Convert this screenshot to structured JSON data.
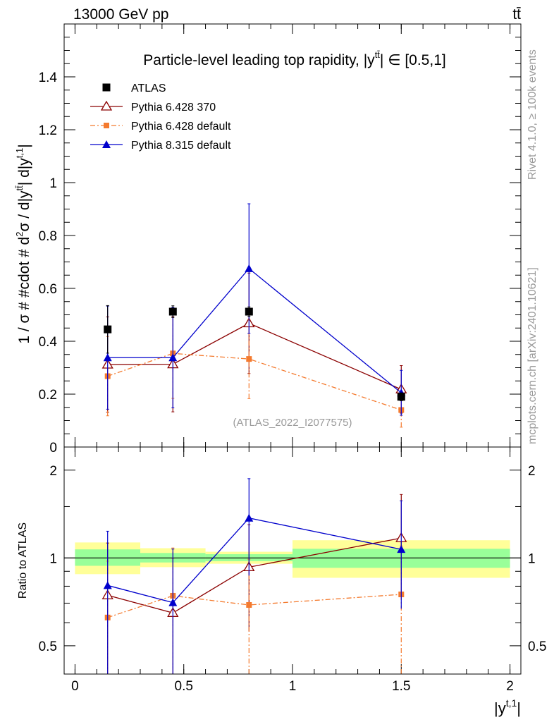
{
  "header": {
    "energy_label": "13000 GeV pp",
    "process_label": "tt̄"
  },
  "side_labels": {
    "rivet": "Rivet 4.1.0, ≥ 100k events",
    "mcplots": "mcplots.cern.ch [arXiv:2401.10621]"
  },
  "chart_data": [
    {
      "type": "line",
      "title": "Particle-level leading top rapidity, |y",
      "title_sup": "tt̄",
      "title_tail": "| ∈ [0.5,1]",
      "ylabel": "1 / σ # #cdot # d²σ / d|y^{tt̄}| d|y^{t,1}|",
      "ylabel_main": "1 / σ # #cdot # d",
      "ylabel_sup2": "2",
      "ylabel_mid": "σ / d|y",
      "ylabel_sup_tt": "tt̄",
      "ylabel_mid2": "| d|y",
      "ylabel_sup_t1": "t,1",
      "ylabel_end": "|",
      "watermark": "(ATLAS_2022_I2077575)",
      "xlim": [
        -0.05,
        2.05
      ],
      "ylim": [
        0,
        1.6
      ],
      "yticks": [
        0,
        0.2,
        0.4,
        0.6,
        0.8,
        1,
        1.2,
        1.4
      ],
      "ytick_labels": [
        "0",
        "0.2",
        "0.4",
        "0.6",
        "0.8",
        "1",
        "1.2",
        "1.4"
      ],
      "x": [
        0.15,
        0.45,
        0.8,
        1.5
      ],
      "series": [
        {
          "name": "ATLAS",
          "color": "#000000",
          "marker": "square",
          "values": [
            0.445,
            0.512,
            0.512,
            0.19
          ],
          "err": [
            0.09,
            0.022,
            0.018,
            0.015
          ]
        },
        {
          "name": "Pythia 6.428 370",
          "color": "#8b0000",
          "marker": "open-triangle",
          "values": [
            0.312,
            0.313,
            0.468,
            0.218
          ],
          "err": [
            0.18,
            0.18,
            0.19,
            0.09
          ]
        },
        {
          "name": "Pythia 6.428 default",
          "color": "#f47a2e",
          "marker": "small-square",
          "dash": "7,3,2,3",
          "values": [
            0.268,
            0.354,
            0.333,
            0.14
          ],
          "err": [
            0.15,
            0.17,
            0.15,
            0.065
          ]
        },
        {
          "name": "Pythia 8.315 default",
          "color": "#0000cc",
          "marker": "filled-triangle",
          "values": [
            0.338,
            0.338,
            0.675,
            0.205
          ],
          "err": [
            0.195,
            0.19,
            0.245,
            0.085
          ]
        }
      ]
    },
    {
      "type": "line",
      "ylabel": "Ratio to ATLAS",
      "xlabel": "|y^{t,1}|",
      "xlabel_main": "|y",
      "xlabel_sup": "t,1",
      "xlabel_end": "|",
      "xlim": [
        -0.05,
        2.05
      ],
      "ylim": [
        0.4,
        2.4
      ],
      "yscale": "log",
      "yticks": [
        0.5,
        1,
        2
      ],
      "ytick_labels": [
        "0.5",
        "1",
        "2"
      ],
      "xticks": [
        0,
        0.5,
        1,
        1.5,
        2
      ],
      "xtick_labels": [
        "0",
        "0.5",
        "1",
        "1.5",
        "2"
      ],
      "bins": [
        {
          "lo": 0.0,
          "hi": 0.3,
          "green": [
            0.94,
            1.07
          ],
          "yellow": [
            0.88,
            1.13
          ]
        },
        {
          "lo": 0.3,
          "hi": 0.6,
          "green": [
            0.965,
            1.04
          ],
          "yellow": [
            0.93,
            1.08
          ]
        },
        {
          "lo": 0.6,
          "hi": 1.0,
          "green": [
            0.975,
            1.03
          ],
          "yellow": [
            0.955,
            1.05
          ]
        },
        {
          "lo": 1.0,
          "hi": 2.0,
          "green": [
            0.925,
            1.075
          ],
          "yellow": [
            0.855,
            1.15
          ]
        }
      ],
      "x": [
        0.15,
        0.45,
        0.8,
        1.5
      ],
      "series": [
        {
          "name": "Pythia 6.428 370",
          "color": "#8b0000",
          "marker": "open-triangle",
          "values": [
            0.745,
            0.648,
            0.93,
            1.17
          ],
          "err_lo": [
            0.38,
            0.35,
            0.37,
            0.45
          ],
          "err_hi": [
            0.38,
            0.35,
            0.37,
            0.48
          ]
        },
        {
          "name": "Pythia 6.428 default",
          "color": "#f47a2e",
          "marker": "small-square",
          "dash": "7,3,2,3",
          "values": [
            0.625,
            0.742,
            0.69,
            0.75
          ],
          "err_lo": [
            0.3,
            0.34,
            0.3,
            0.35
          ],
          "err_hi": [
            0.35,
            0.34,
            0.3,
            0.35
          ]
        },
        {
          "name": "Pythia 8.315 default",
          "color": "#0000cc",
          "marker": "filled-triangle",
          "values": [
            0.805,
            0.703,
            1.37,
            1.07
          ],
          "err_lo": [
            0.43,
            0.37,
            0.5,
            0.4
          ],
          "err_hi": [
            0.43,
            0.37,
            0.5,
            0.5
          ]
        }
      ]
    }
  ]
}
